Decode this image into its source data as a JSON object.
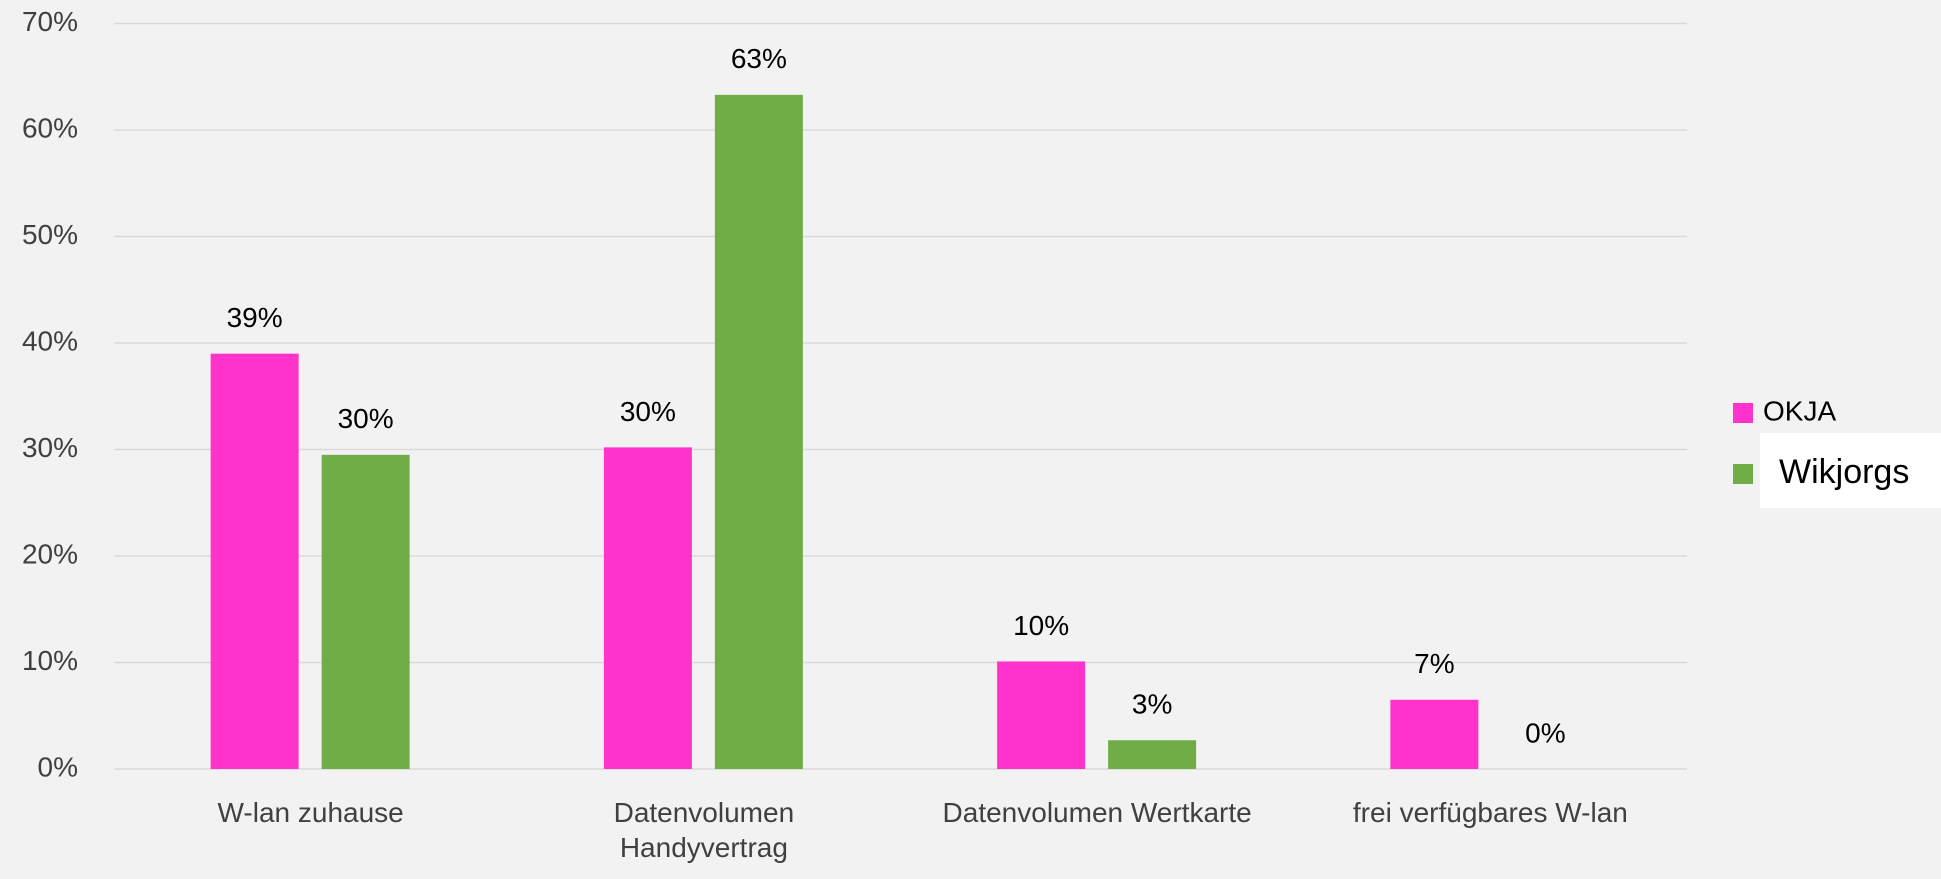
{
  "chart_data": {
    "type": "bar",
    "categories": [
      "W-lan zuhause",
      "Datenvolumen Handyvertrag",
      "Datenvolumen Wertkarte",
      "frei verfügbares W-lan"
    ],
    "series": [
      {
        "name": "OKJA",
        "color": "#ff33cc",
        "values": [
          39,
          30.2,
          10.1,
          6.5
        ],
        "value_labels": [
          "39%",
          "30%",
          "10%",
          "7%"
        ]
      },
      {
        "name": "Wikjorgs",
        "color": "#70ad47",
        "values": [
          29.5,
          63.3,
          2.7,
          0
        ],
        "value_labels": [
          "30%",
          "63%",
          "3%",
          "0%"
        ]
      }
    ],
    "ylim": [
      0,
      70
    ],
    "yticks": [
      {
        "value": 0,
        "label": "0%"
      },
      {
        "value": 10,
        "label": "10%"
      },
      {
        "value": 20,
        "label": "20%"
      },
      {
        "value": 30,
        "label": "30%"
      },
      {
        "value": 40,
        "label": "40%"
      },
      {
        "value": 50,
        "label": "50%"
      },
      {
        "value": 60,
        "label": "60%"
      },
      {
        "value": 70,
        "label": "70%"
      }
    ],
    "grid": true,
    "legend": "right"
  }
}
